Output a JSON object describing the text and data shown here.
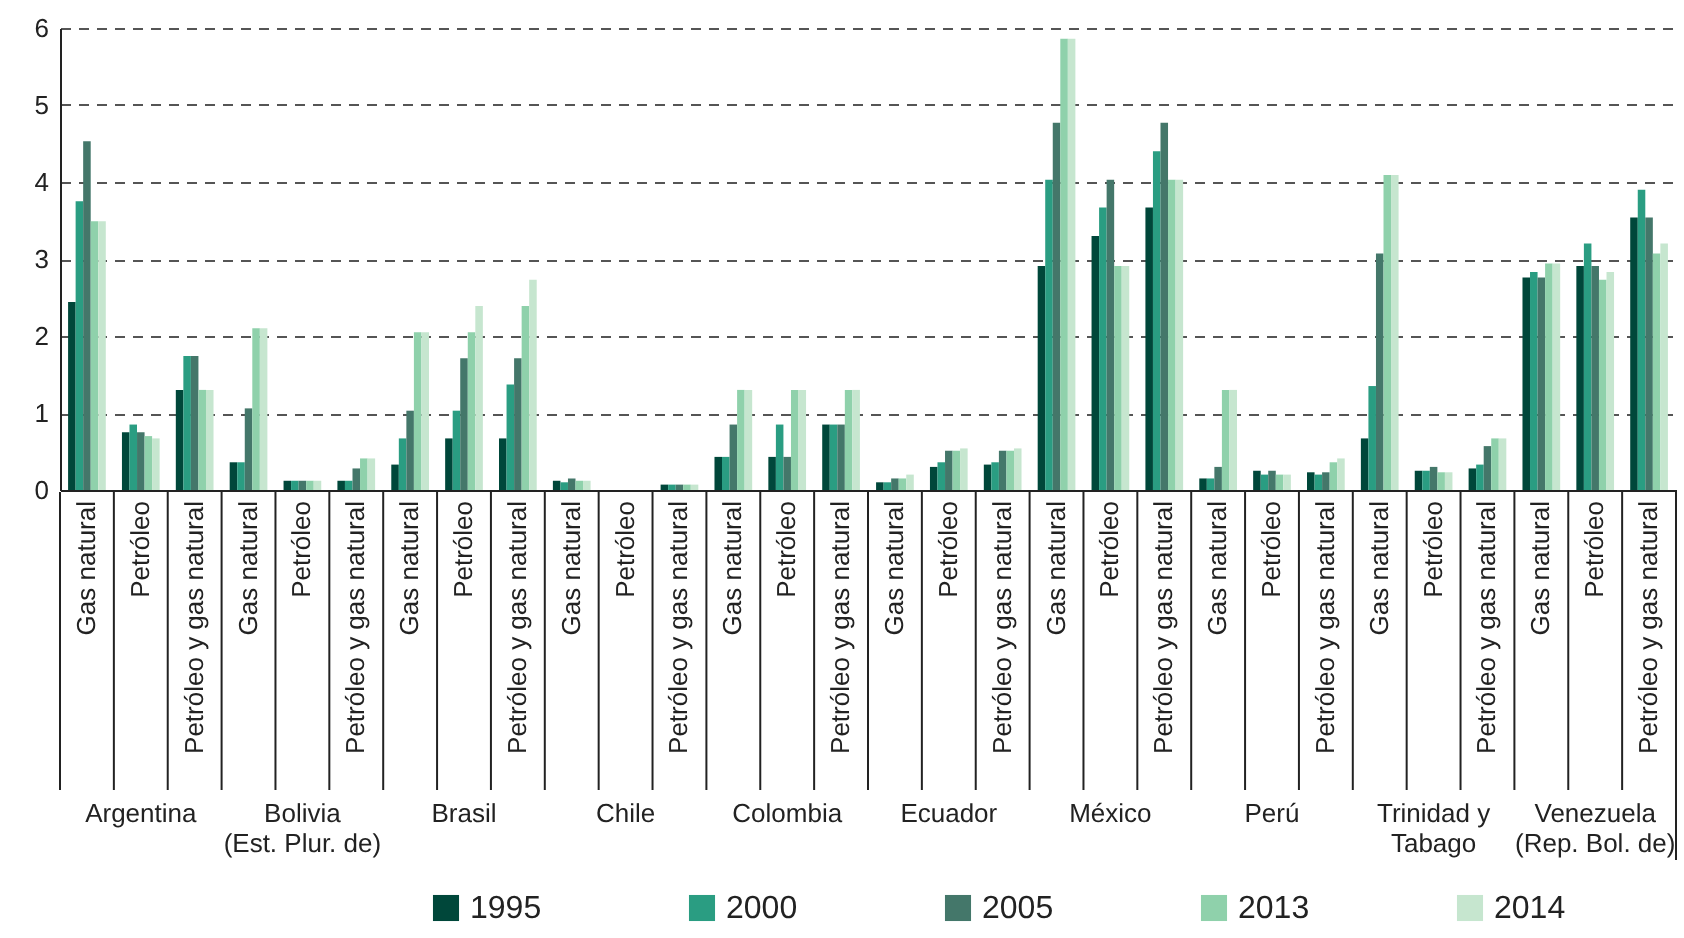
{
  "chart_data": {
    "type": "bar",
    "categories": [
      "Gas natural",
      "Petróleo",
      "Petróleo y gas natural",
      "Gas natural",
      "Petróleo",
      "Petróleo y gas natural",
      "Gas natural",
      "Petróleo",
      "Petróleo y gas natural",
      "Gas natural",
      "Petróleo",
      "Petróleo y gas natural",
      "Gas natural",
      "Petróleo",
      "Petróleo y gas natural",
      "Gas natural",
      "Petróleo",
      "Petróleo y gas natural",
      "Gas natural",
      "Petróleo",
      "Petróleo y gas natural",
      "Gas natural",
      "Petróleo",
      "Petróleo y gas natural",
      "Gas natural",
      "Petróleo",
      "Petróleo y gas natural",
      "Gas natural",
      "Petróleo",
      "Petróleo y gas natural"
    ],
    "annotations": [
      "Argentina",
      "Bolivia\n(Est. Plur. de)",
      "Brasil",
      "Chile",
      "Colombia",
      "Ecuador",
      "México",
      "Perú",
      "Trinidad y\nTabago",
      "Venezuela\n(Rep. Bol. de)"
    ],
    "series": [
      {
        "name": "1995",
        "color": "#00473a",
        "values": [
          2.44,
          0.75,
          1.3,
          0.36,
          0.12,
          0.12,
          0.33,
          0.67,
          0.67,
          0.12,
          null,
          0.07,
          0.43,
          0.43,
          0.85,
          0.1,
          0.3,
          0.33,
          2.91,
          3.3,
          3.67,
          0.15,
          0.25,
          0.23,
          0.67,
          0.25,
          0.28,
          2.76,
          2.91,
          3.54
        ]
      },
      {
        "name": "2000",
        "color": "#2a9d82",
        "values": [
          3.75,
          0.85,
          1.74,
          0.36,
          0.12,
          0.12,
          0.67,
          1.03,
          1.37,
          0.1,
          null,
          0.07,
          0.43,
          0.85,
          0.85,
          0.1,
          0.36,
          0.36,
          4.03,
          3.67,
          4.4,
          0.15,
          0.2,
          0.2,
          1.35,
          0.25,
          0.33,
          2.83,
          3.2,
          3.9
        ]
      },
      {
        "name": "2005",
        "color": "#44776a",
        "values": [
          4.53,
          0.75,
          1.74,
          1.06,
          0.12,
          0.28,
          1.03,
          1.71,
          1.71,
          0.15,
          null,
          0.07,
          0.85,
          0.43,
          0.85,
          0.15,
          0.51,
          0.51,
          4.77,
          4.03,
          4.77,
          0.3,
          0.25,
          0.23,
          3.07,
          0.3,
          0.57,
          2.76,
          2.91,
          3.54
        ]
      },
      {
        "name": "2013",
        "color": "#8fd1ab",
        "values": [
          3.49,
          0.7,
          1.3,
          2.1,
          0.12,
          0.41,
          2.05,
          2.05,
          2.39,
          0.12,
          null,
          0.07,
          1.3,
          1.3,
          1.3,
          0.15,
          0.51,
          0.51,
          5.86,
          2.91,
          4.03,
          1.3,
          0.2,
          0.36,
          4.09,
          0.23,
          0.67,
          2.94,
          2.73,
          3.07
        ]
      },
      {
        "name": "2014",
        "color": "#c6e6cf",
        "values": [
          3.49,
          0.67,
          1.3,
          2.1,
          0.12,
          0.41,
          2.05,
          2.39,
          2.73,
          0.12,
          null,
          0.07,
          1.3,
          1.3,
          1.3,
          0.2,
          0.54,
          0.54,
          5.86,
          2.91,
          4.03,
          1.3,
          0.2,
          0.41,
          4.09,
          0.23,
          0.67,
          2.94,
          2.83,
          3.2
        ]
      }
    ],
    "ylim": [
      0,
      6
    ],
    "yticks": [
      0,
      1,
      2,
      3,
      4,
      5,
      6
    ],
    "grid": "y",
    "legend": "bottom"
  }
}
